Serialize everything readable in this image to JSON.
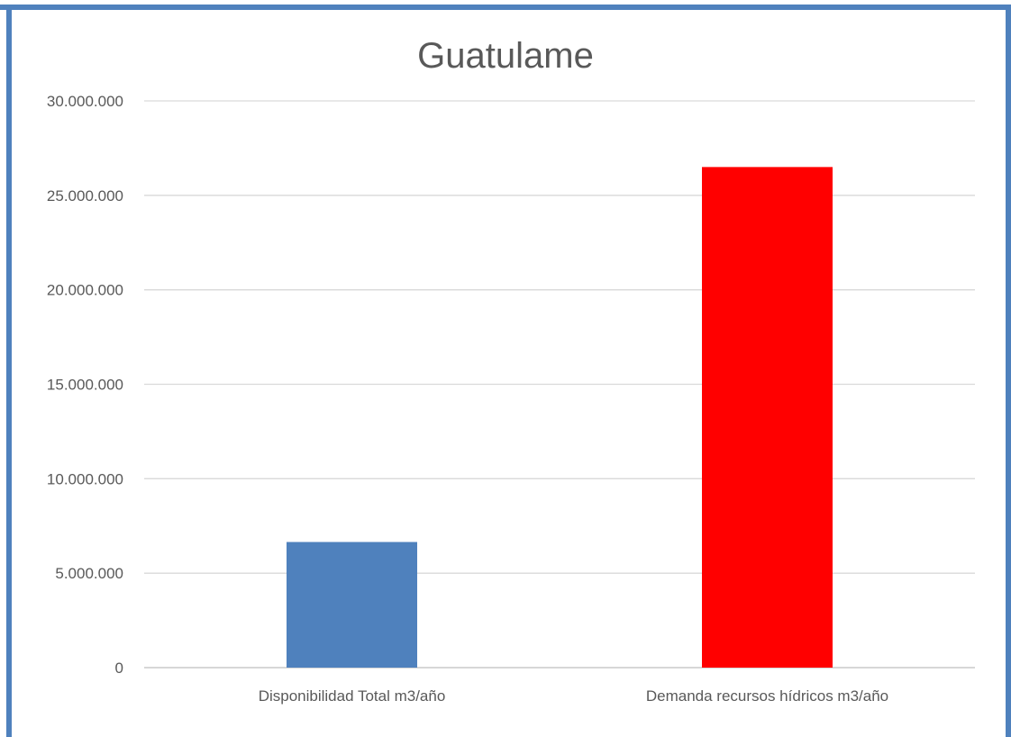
{
  "chart_data": {
    "type": "bar",
    "title": "Guatulame",
    "categories": [
      "Disponibilidad Total m3/año",
      "Demanda recursos hídricos m3/año"
    ],
    "values": [
      6650000,
      26500000
    ],
    "bar_colors": [
      "#4f81bd",
      "#ff0000"
    ],
    "ylim": [
      0,
      30000000
    ],
    "y_ticks": [
      "0",
      "5.000.000",
      "10.000.000",
      "15.000.000",
      "20.000.000",
      "25.000.000",
      "30.000.000"
    ],
    "grid": true,
    "xlabel": "",
    "ylabel": ""
  },
  "colors": {
    "frame": "#4f81bd",
    "gridline": "#d9d9d9",
    "axis_text": "#595959"
  }
}
